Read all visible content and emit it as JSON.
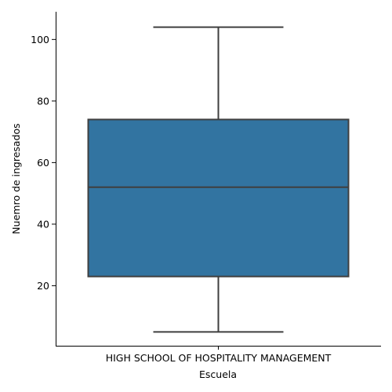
{
  "chart_data": {
    "type": "box",
    "xlabel": "Escuela",
    "ylabel": "Nuemro de ingresados",
    "categories": [
      "HIGH SCHOOL OF HOSPITALITY MANAGEMENT"
    ],
    "boxes": [
      {
        "category": "HIGH SCHOOL OF HOSPITALITY MANAGEMENT",
        "whisker_low": 5,
        "q1": 23,
        "median": 52,
        "q3": 74,
        "whisker_high": 104
      }
    ],
    "yticks": [
      20,
      40,
      60,
      80,
      100
    ],
    "ylim": [
      0.5,
      109
    ],
    "grid": false,
    "color": "#3274a1",
    "line_color": "#3f3f3f"
  }
}
